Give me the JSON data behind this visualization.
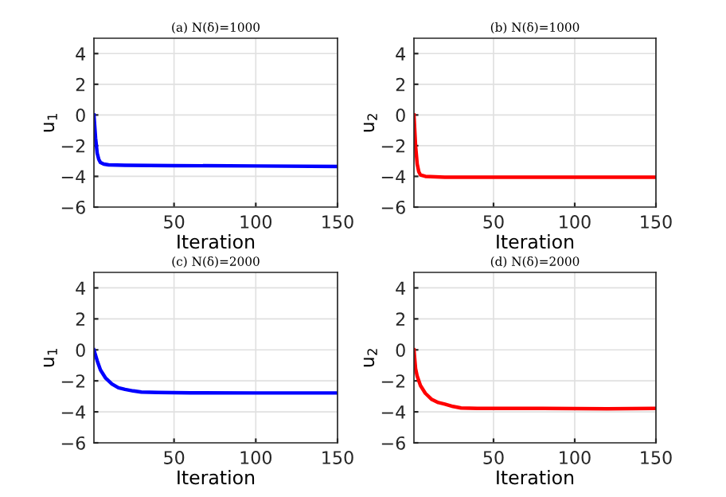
{
  "chart_data": [
    {
      "type": "line",
      "title": "(a) N(δ)=1000",
      "xlabel": "Iteration",
      "ylabel": "u$_{1}$",
      "xlim": [
        1,
        150
      ],
      "xticks": [
        50,
        100,
        150
      ],
      "ylim": [
        -6,
        5
      ],
      "yticks": [
        -6,
        -4,
        -2,
        0,
        2,
        4
      ],
      "grid": true,
      "series": [
        {
          "color": "#0000ff",
          "x": [
            1,
            2,
            3,
            4,
            5,
            7,
            10,
            20,
            50,
            100,
            150
          ],
          "values": [
            0,
            -1.5,
            -2.5,
            -2.9,
            -3.1,
            -3.2,
            -3.25,
            -3.28,
            -3.3,
            -3.32,
            -3.35
          ]
        }
      ]
    },
    {
      "type": "line",
      "title": "(b) N(δ)=1000",
      "xlabel": "Iteration",
      "ylabel": "u$_{2}$",
      "xlim": [
        1,
        150
      ],
      "xticks": [
        50,
        100,
        150
      ],
      "ylim": [
        -6,
        5
      ],
      "yticks": [
        -6,
        -4,
        -2,
        0,
        2,
        4
      ],
      "grid": true,
      "series": [
        {
          "color": "#ff0000",
          "x": [
            1,
            2,
            3,
            4,
            5,
            8,
            20,
            150
          ],
          "values": [
            0,
            -2,
            -3.2,
            -3.7,
            -3.9,
            -4.0,
            -4.05,
            -4.05
          ]
        }
      ]
    },
    {
      "type": "line",
      "title": "(c) N(δ)=2000",
      "xlabel": "Iteration",
      "ylabel": "u$_{1}$",
      "xlim": [
        1,
        150
      ],
      "xticks": [
        50,
        100,
        150
      ],
      "ylim": [
        -6,
        5
      ],
      "yticks": [
        -6,
        -4,
        -2,
        0,
        2,
        4
      ],
      "grid": true,
      "series": [
        {
          "color": "#0000ff",
          "x": [
            1,
            3,
            5,
            8,
            12,
            16,
            20,
            25,
            30,
            40,
            60,
            100,
            150
          ],
          "values": [
            0,
            -0.7,
            -1.3,
            -1.8,
            -2.2,
            -2.45,
            -2.55,
            -2.65,
            -2.72,
            -2.75,
            -2.77,
            -2.78,
            -2.78
          ]
        }
      ]
    },
    {
      "type": "line",
      "title": "(d) N(δ)=2000",
      "xlabel": "Iteration",
      "ylabel": "u$_{2}$",
      "xlim": [
        1,
        150
      ],
      "xticks": [
        50,
        100,
        150
      ],
      "ylim": [
        -6,
        5
      ],
      "yticks": [
        -6,
        -4,
        -2,
        0,
        2,
        4
      ],
      "grid": true,
      "series": [
        {
          "color": "#ff0000",
          "x": [
            1,
            2,
            3,
            5,
            8,
            12,
            16,
            20,
            25,
            30,
            40,
            80,
            120,
            150
          ],
          "values": [
            0,
            -1.2,
            -1.7,
            -2.3,
            -2.8,
            -3.2,
            -3.4,
            -3.5,
            -3.65,
            -3.75,
            -3.78,
            -3.78,
            -3.8,
            -3.78
          ]
        }
      ]
    }
  ]
}
